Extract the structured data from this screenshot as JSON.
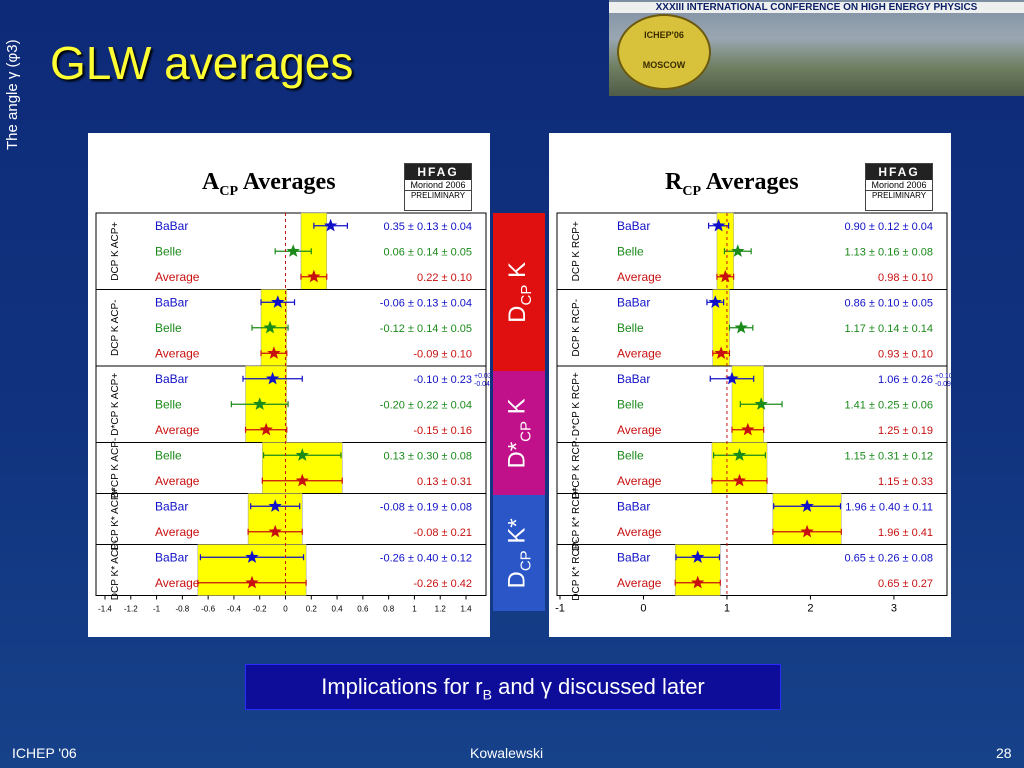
{
  "slide": {
    "side_label": "The angle γ (φ3)",
    "title": "GLW averages",
    "banner_title": "XXXIII INTERNATIONAL CONFERENCE ON HIGH ENERGY PHYSICS",
    "banner_logo_top": "ICHEP'06",
    "banner_logo_bottom": "MOSCOW",
    "note": "Implications for rB and γ discussed later",
    "footer_left": "ICHEP '06",
    "footer_center": "Kowalewski",
    "footer_right": "28"
  },
  "group_tags": [
    "DCP K",
    "D*CP K",
    "DCP K*"
  ],
  "hfag_badge": {
    "title": "HFAG",
    "meeting": "Moriond 2006",
    "status": "PRELIMINARY"
  },
  "colors": {
    "babar": "#1010c8",
    "belle": "#1a8a1a",
    "average": "#c81010",
    "band": "#ffff00",
    "dcpk_tag": "#e01010",
    "dstar_tag": "#c0108a",
    "dkstar_tag": "#2a56c8"
  },
  "chart_data": [
    {
      "type": "scatter",
      "title": "ACP Averages",
      "xlim": [
        -1.4,
        1.4
      ],
      "xticks": [
        "-1.4",
        "-1.2",
        "-1",
        "-0.8",
        "-0.6",
        "-0.4",
        "-0.2",
        "0",
        "0.2",
        "0.4",
        "0.6",
        "0.8",
        "1",
        "1.2",
        "1.4"
      ],
      "xtick_values": [
        -1.4,
        -1.2,
        -1,
        -0.8,
        -0.6,
        -0.4,
        -0.2,
        0,
        0.2,
        0.4,
        0.6,
        0.8,
        1,
        1.2,
        1.4
      ],
      "ref_line": 0,
      "groups": [
        {
          "label": "DCP K ACP+",
          "rows": [
            {
              "exp": "BaBar",
              "value": 0.35,
              "err": 0.13,
              "text": "0.35 ± 0.13 ± 0.04"
            },
            {
              "exp": "Belle",
              "value": 0.06,
              "err": 0.14,
              "text": "0.06 ± 0.14 ± 0.05"
            },
            {
              "exp": "Average",
              "value": 0.22,
              "err": 0.1,
              "text": "0.22 ± 0.10"
            }
          ]
        },
        {
          "label": "DCP K ACP-",
          "rows": [
            {
              "exp": "BaBar",
              "value": -0.06,
              "err": 0.13,
              "text": "-0.06 ± 0.13 ± 0.04"
            },
            {
              "exp": "Belle",
              "value": -0.12,
              "err": 0.14,
              "text": "-0.12 ± 0.14 ± 0.05"
            },
            {
              "exp": "Average",
              "value": -0.09,
              "err": 0.1,
              "text": "-0.09 ± 0.10"
            }
          ]
        },
        {
          "label": "D*CP K ACP+",
          "rows": [
            {
              "exp": "BaBar",
              "value": -0.1,
              "err": 0.23,
              "text": "-0.10 ± 0.23",
              "sup": "+0.03",
              "sub": "-0.04"
            },
            {
              "exp": "Belle",
              "value": -0.2,
              "err": 0.22,
              "text": "-0.20 ± 0.22 ± 0.04"
            },
            {
              "exp": "Average",
              "value": -0.15,
              "err": 0.16,
              "text": "-0.15 ± 0.16"
            }
          ]
        },
        {
          "label": "D*CP K ACP-",
          "rows": [
            {
              "exp": "Belle",
              "value": 0.13,
              "err": 0.3,
              "text": "0.13 ± 0.30 ± 0.08"
            },
            {
              "exp": "Average",
              "value": 0.13,
              "err": 0.31,
              "text": "0.13 ± 0.31"
            }
          ]
        },
        {
          "label": "DCP K* ACP+",
          "rows": [
            {
              "exp": "BaBar",
              "value": -0.08,
              "err": 0.19,
              "text": "-0.08 ± 0.19 ± 0.08"
            },
            {
              "exp": "Average",
              "value": -0.08,
              "err": 0.21,
              "text": "-0.08 ± 0.21"
            }
          ]
        },
        {
          "label": "DCP K* ACP-",
          "rows": [
            {
              "exp": "BaBar",
              "value": -0.26,
              "err": 0.4,
              "text": "-0.26 ± 0.40 ± 0.12"
            },
            {
              "exp": "Average",
              "value": -0.26,
              "err": 0.42,
              "text": "-0.26 ± 0.42"
            }
          ]
        }
      ]
    },
    {
      "type": "scatter",
      "title": "RCP Averages",
      "xlim": [
        -1,
        3.6
      ],
      "xticks": [
        "-1",
        "0",
        "1",
        "2",
        "3"
      ],
      "xtick_values": [
        -1,
        0,
        1,
        2,
        3
      ],
      "ref_line": 1,
      "groups": [
        {
          "label": "DCP K RCP+",
          "rows": [
            {
              "exp": "BaBar",
              "value": 0.9,
              "err": 0.12,
              "text": "0.90 ± 0.12 ± 0.04"
            },
            {
              "exp": "Belle",
              "value": 1.13,
              "err": 0.16,
              "text": "1.13 ± 0.16 ± 0.08"
            },
            {
              "exp": "Average",
              "value": 0.98,
              "err": 0.1,
              "text": "0.98 ± 0.10"
            }
          ]
        },
        {
          "label": "DCP K RCP-",
          "rows": [
            {
              "exp": "BaBar",
              "value": 0.86,
              "err": 0.1,
              "text": "0.86 ± 0.10 ± 0.05"
            },
            {
              "exp": "Belle",
              "value": 1.17,
              "err": 0.14,
              "text": "1.17 ± 0.14 ± 0.14"
            },
            {
              "exp": "Average",
              "value": 0.93,
              "err": 0.1,
              "text": "0.93 ± 0.10"
            }
          ]
        },
        {
          "label": "D*CP K RCP+",
          "rows": [
            {
              "exp": "BaBar",
              "value": 1.06,
              "err": 0.26,
              "text": "1.06 ± 0.26",
              "sup": "+0.10",
              "sub": "-0.09"
            },
            {
              "exp": "Belle",
              "value": 1.41,
              "err": 0.25,
              "text": "1.41 ± 0.25 ± 0.06"
            },
            {
              "exp": "Average",
              "value": 1.25,
              "err": 0.19,
              "text": "1.25 ± 0.19"
            }
          ]
        },
        {
          "label": "D*CP K RCP-",
          "rows": [
            {
              "exp": "Belle",
              "value": 1.15,
              "err": 0.31,
              "text": "1.15 ± 0.31 ± 0.12"
            },
            {
              "exp": "Average",
              "value": 1.15,
              "err": 0.33,
              "text": "1.15 ± 0.33"
            }
          ]
        },
        {
          "label": "DCP K* RCP+",
          "rows": [
            {
              "exp": "BaBar",
              "value": 1.96,
              "err": 0.4,
              "text": "1.96 ± 0.40 ± 0.11"
            },
            {
              "exp": "Average",
              "value": 1.96,
              "err": 0.41,
              "text": "1.96 ± 0.41"
            }
          ]
        },
        {
          "label": "DCP K* RCP-",
          "rows": [
            {
              "exp": "BaBar",
              "value": 0.65,
              "err": 0.26,
              "text": "0.65 ± 0.26 ± 0.08"
            },
            {
              "exp": "Average",
              "value": 0.65,
              "err": 0.27,
              "text": "0.65 ± 0.27"
            }
          ]
        }
      ]
    }
  ]
}
